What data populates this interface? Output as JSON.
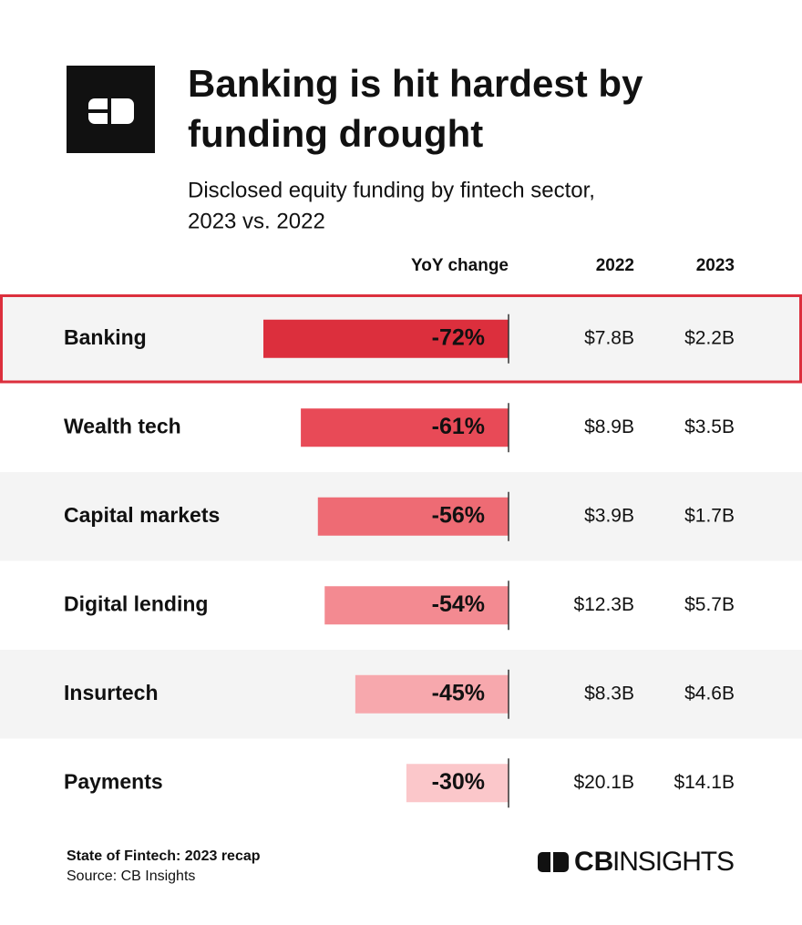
{
  "chart_data": {
    "type": "bar",
    "title_lines": [
      "Banking is hit hardest by",
      "funding drought"
    ],
    "subtitle_lines": [
      "Disclosed equity funding by fintech sector,",
      "2023 vs. 2022"
    ],
    "categories": [
      "Banking",
      "Wealth tech",
      "Capital markets",
      "Digital lending",
      "Insurtech",
      "Payments"
    ],
    "series": [
      {
        "name": "YoY change",
        "values": [
          -72,
          -61,
          -56,
          -54,
          -45,
          -30
        ],
        "value_labels": [
          "-72%",
          "-61%",
          "-56%",
          "-54%",
          "-45%",
          "-30%"
        ],
        "colors": [
          "#dc2f3d",
          "#e84a57",
          "#ee6b74",
          "#f38a91",
          "#f7a8ad",
          "#fbc7ca"
        ]
      }
    ],
    "columns": [
      {
        "name": "2022",
        "values": [
          "$7.8B",
          "$8.9B",
          "$3.9B",
          "$12.3B",
          "$8.3B",
          "$20.1B"
        ]
      },
      {
        "name": "2023",
        "values": [
          "$2.2B",
          "$3.5B",
          "$1.7B",
          "$5.7B",
          "$4.6B",
          "$14.1B"
        ]
      }
    ],
    "xlim": [
      -72,
      0
    ],
    "highlight_index": 0,
    "footer": {
      "report": "State of Fintech: 2023 recap",
      "source": "Source: CB Insights"
    },
    "brand": [
      "CB",
      "INSIGHTS"
    ]
  }
}
